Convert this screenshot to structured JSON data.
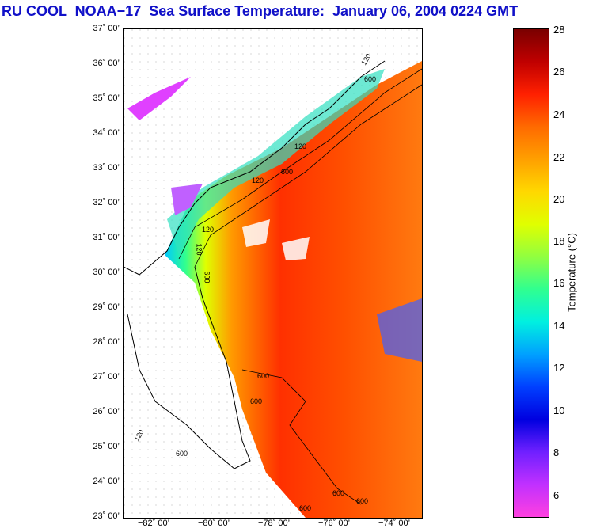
{
  "title": "RU COOL  NOAA−17  Sea Surface Temperature:  January 06, 2004 0224 GMT",
  "map": {
    "lat_labels": [
      "37˚ 00’",
      "36˚ 00’",
      "35˚ 00’",
      "34˚ 00’",
      "33˚ 00’",
      "32˚ 00’",
      "31˚ 00’",
      "30˚ 00’",
      "29˚ 00’",
      "28˚ 00’",
      "27˚ 00’",
      "26˚ 00’",
      "25˚ 00’",
      "24˚ 00’",
      "23˚ 00’"
    ],
    "lon_labels": [
      "−82˚ 00’",
      "−80˚ 00’",
      "−78˚ 00’",
      "−76˚ 00’",
      "−74˚ 00’"
    ],
    "contour_labels": [
      "120",
      "600",
      "120",
      "600",
      "120",
      "600",
      "600",
      "600",
      "120",
      "600",
      "600",
      "120",
      "600",
      "600",
      "120"
    ]
  },
  "colorbar": {
    "label": "Temperature (°C)",
    "ticks": [
      "28",
      "26",
      "24",
      "22",
      "20",
      "18",
      "16",
      "14",
      "12",
      "10",
      "8",
      "6"
    ],
    "colors": [
      "#7a0000",
      "#c00000",
      "#ff2000",
      "#ff6a00",
      "#ffa000",
      "#ffd800",
      "#e0ff00",
      "#90ff40",
      "#30ff90",
      "#00f0e0",
      "#00a0ff",
      "#0040ff",
      "#0000e0",
      "#7020ff",
      "#c030ff",
      "#ff40e0"
    ]
  }
}
